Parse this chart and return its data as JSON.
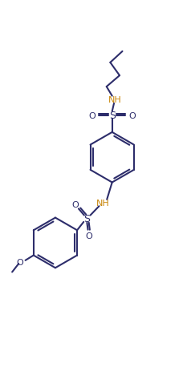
{
  "bg_color": "#ffffff",
  "line_color": "#2d2d6b",
  "nh_color": "#c8860a",
  "lw": 1.5,
  "fig_width": 2.33,
  "fig_height": 4.64,
  "dpi": 100,
  "xlim": [
    0,
    10
  ],
  "ylim": [
    0,
    20
  ]
}
